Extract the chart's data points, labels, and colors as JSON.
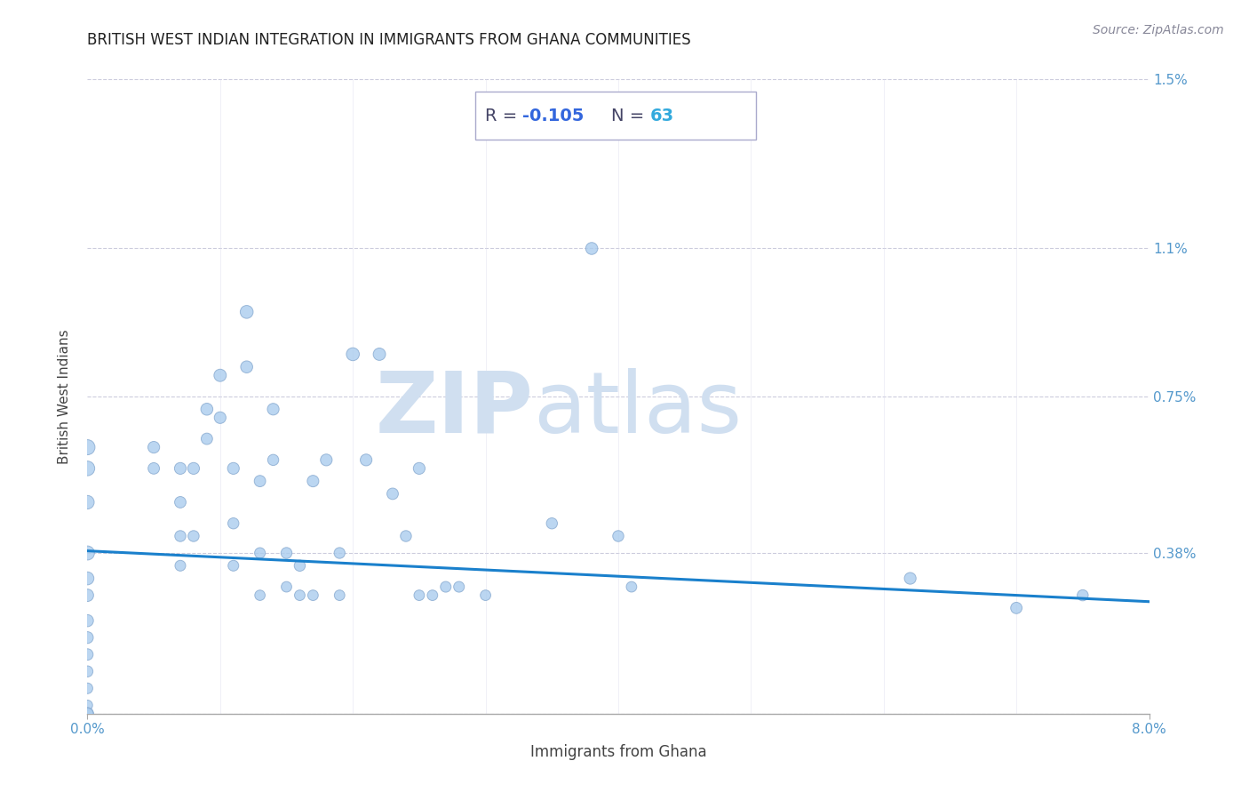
{
  "title": "BRITISH WEST INDIAN INTEGRATION IN IMMIGRANTS FROM GHANA COMMUNITIES",
  "source": "Source: ZipAtlas.com",
  "xlabel": "Immigrants from Ghana",
  "ylabel": "British West Indians",
  "xlim": [
    0.0,
    0.08
  ],
  "ylim": [
    0.0,
    0.015
  ],
  "xtick_labels": [
    "0.0%",
    "8.0%"
  ],
  "ytick_labels": [
    "",
    "0.38%",
    "0.75%",
    "1.1%",
    "1.5%"
  ],
  "ytick_values": [
    0.0,
    0.0038,
    0.0075,
    0.011,
    0.015
  ],
  "R_label": "R = ",
  "R_value": "-0.105",
  "N_label": "  N = ",
  "N_value": "63",
  "scatter_color": "#aaccee",
  "scatter_edgecolor": "#88aad0",
  "line_color": "#1a80cc",
  "title_color": "#222222",
  "label_color": "#444444",
  "axis_tick_color": "#5599cc",
  "annotation_label_color": "#444466",
  "r_value_color": "#3366dd",
  "n_value_color": "#33aadd",
  "watermark_zip": "ZIP",
  "watermark_atlas": "atlas",
  "watermark_color": "#d0dff0",
  "grid_color": "#ccccdd",
  "background_color": "#ffffff",
  "line_y0": 0.00385,
  "line_y1": 0.00265,
  "scatter_points": [
    [
      0.0,
      0.0063
    ],
    [
      0.0,
      0.0058
    ],
    [
      0.0,
      0.005
    ],
    [
      0.0,
      0.0038
    ],
    [
      0.0,
      0.0032
    ],
    [
      0.0,
      0.0028
    ],
    [
      0.0,
      0.0022
    ],
    [
      0.0,
      0.0018
    ],
    [
      0.0,
      0.0014
    ],
    [
      0.0,
      0.001
    ],
    [
      0.0,
      0.0006
    ],
    [
      0.0,
      0.0002
    ],
    [
      0.0,
      0.0
    ],
    [
      0.0,
      0.0
    ],
    [
      0.005,
      0.0063
    ],
    [
      0.005,
      0.0058
    ],
    [
      0.007,
      0.0058
    ],
    [
      0.007,
      0.005
    ],
    [
      0.007,
      0.0042
    ],
    [
      0.007,
      0.0035
    ],
    [
      0.008,
      0.0058
    ],
    [
      0.008,
      0.0042
    ],
    [
      0.009,
      0.0072
    ],
    [
      0.009,
      0.0065
    ],
    [
      0.01,
      0.008
    ],
    [
      0.01,
      0.007
    ],
    [
      0.011,
      0.0058
    ],
    [
      0.011,
      0.0045
    ],
    [
      0.011,
      0.0035
    ],
    [
      0.012,
      0.0095
    ],
    [
      0.012,
      0.0082
    ],
    [
      0.013,
      0.0055
    ],
    [
      0.013,
      0.0038
    ],
    [
      0.013,
      0.0028
    ],
    [
      0.014,
      0.0072
    ],
    [
      0.014,
      0.006
    ],
    [
      0.015,
      0.0038
    ],
    [
      0.015,
      0.003
    ],
    [
      0.016,
      0.0035
    ],
    [
      0.016,
      0.0028
    ],
    [
      0.017,
      0.0055
    ],
    [
      0.017,
      0.0028
    ],
    [
      0.018,
      0.006
    ],
    [
      0.019,
      0.0038
    ],
    [
      0.019,
      0.0028
    ],
    [
      0.02,
      0.0085
    ],
    [
      0.021,
      0.006
    ],
    [
      0.022,
      0.0085
    ],
    [
      0.023,
      0.0052
    ],
    [
      0.024,
      0.0042
    ],
    [
      0.025,
      0.0058
    ],
    [
      0.025,
      0.0028
    ],
    [
      0.026,
      0.0028
    ],
    [
      0.027,
      0.003
    ],
    [
      0.028,
      0.003
    ],
    [
      0.03,
      0.0028
    ],
    [
      0.035,
      0.0045
    ],
    [
      0.038,
      0.011
    ],
    [
      0.04,
      0.0042
    ],
    [
      0.041,
      0.003
    ],
    [
      0.062,
      0.0032
    ],
    [
      0.07,
      0.0025
    ],
    [
      0.075,
      0.0028
    ]
  ],
  "scatter_sizes": [
    150,
    140,
    120,
    130,
    110,
    100,
    95,
    90,
    85,
    80,
    75,
    70,
    100,
    90,
    90,
    85,
    90,
    85,
    80,
    75,
    90,
    80,
    95,
    85,
    100,
    90,
    90,
    80,
    75,
    110,
    95,
    85,
    75,
    70,
    90,
    80,
    80,
    72,
    80,
    72,
    88,
    72,
    90,
    78,
    72,
    110,
    90,
    100,
    85,
    80,
    90,
    72,
    72,
    75,
    75,
    72,
    80,
    95,
    80,
    72,
    90,
    85,
    80
  ]
}
